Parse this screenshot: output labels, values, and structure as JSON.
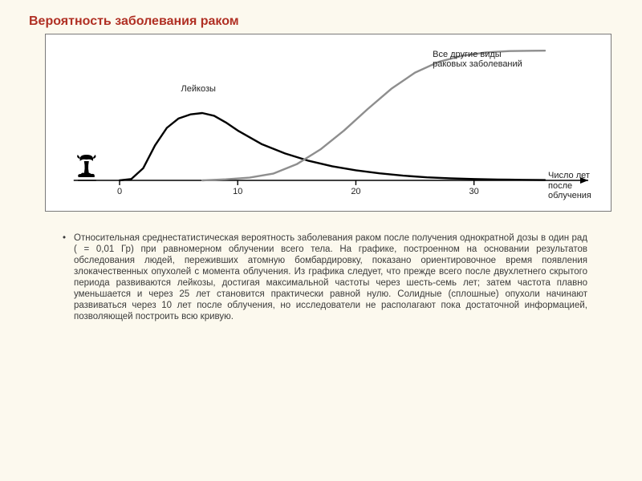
{
  "title": "Вероятность заболевания раком",
  "chart": {
    "type": "line",
    "background_color": "#ffffff",
    "border_color": "#7a7a7a",
    "axis_color": "#000000",
    "x_axis": {
      "min": 0,
      "max": 36,
      "ticks": [
        0,
        10,
        20,
        30
      ],
      "label": "Число лет\nпосле облучения",
      "label_fontsize": 11
    },
    "series": [
      {
        "name": "leukemia",
        "label": "Лейкозы",
        "label_pos": {
          "x_axis": 5.2,
          "y_rel": 0.28
        },
        "color": "#000000",
        "line_width": 2.4,
        "points": [
          [
            0,
            0
          ],
          [
            1,
            2
          ],
          [
            2,
            18
          ],
          [
            3,
            52
          ],
          [
            4,
            78
          ],
          [
            5,
            92
          ],
          [
            6,
            98
          ],
          [
            7,
            100
          ],
          [
            8,
            96
          ],
          [
            9,
            86
          ],
          [
            10,
            74
          ],
          [
            12,
            54
          ],
          [
            14,
            40
          ],
          [
            16,
            29
          ],
          [
            18,
            21
          ],
          [
            20,
            15
          ],
          [
            22,
            10.5
          ],
          [
            24,
            7
          ],
          [
            26,
            4.5
          ],
          [
            28,
            3
          ],
          [
            30,
            2
          ],
          [
            32,
            1.3
          ],
          [
            34,
            0.8
          ],
          [
            36,
            0.5
          ]
        ]
      },
      {
        "name": "other_cancers",
        "label": "Все другие виды\nраковых заболеваний",
        "label_pos": {
          "x_axis": 26.5,
          "y_rel": 0.085
        },
        "color": "#8e8e8e",
        "line_width": 2.4,
        "points": [
          [
            7,
            0
          ],
          [
            9,
            1.5
          ],
          [
            11,
            4
          ],
          [
            13,
            10
          ],
          [
            15,
            24
          ],
          [
            17,
            46
          ],
          [
            19,
            74
          ],
          [
            21,
            106
          ],
          [
            23,
            136
          ],
          [
            25,
            160
          ],
          [
            27,
            176
          ],
          [
            29,
            185
          ],
          [
            31,
            190
          ],
          [
            33,
            192
          ],
          [
            35,
            192.5
          ],
          [
            36,
            192.6
          ]
        ]
      }
    ],
    "y_max_for_scaling": 200,
    "mushroom_icon": {
      "x_axis": -2.8,
      "color": "#000000"
    }
  },
  "body_text": "Относительная среднестатистическая вероятность заболевания раком после получения однократной дозы в один рад ( = 0,01 Гр) при равномерном облучении всего тела. На графике, построенном на основании результатов обследования людей, переживших атомную бомбардировку, показано ориентировочное время появления злокачественных опухолей с момента облучения. Из графика следует, что прежде всего после двухлетнего скрытого периода развиваются лейкозы, достигая максимальной частоты через шесть-семь лет; затем частота плавно уменьшается и через 25 лет становится практически равной нулю. Солидные (сплошные) опухоли начинают развиваться через 10 лет после облучения, но исследователи не располагают пока достаточной информацией, позволяющей построить всю кривую.",
  "colors": {
    "page_bg": "#fcf9ee",
    "title": "#b03024",
    "body": "#3a3a3a"
  },
  "fontsize": {
    "title": 16,
    "body": 11.5,
    "chart_label": 11
  }
}
